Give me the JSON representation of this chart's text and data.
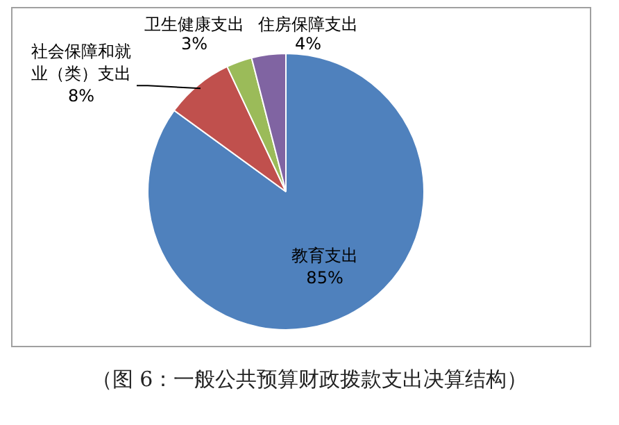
{
  "chart_data": {
    "type": "pie",
    "categories": [
      "教育支出",
      "社会保障和就业（类）支出",
      "卫生健康支出",
      "住房保障支出"
    ],
    "values": [
      85,
      8,
      3,
      4
    ],
    "value_labels": [
      "85%",
      "8%",
      "3%",
      "4%"
    ],
    "colors": [
      "#4f81bd",
      "#c0504d",
      "#9bbb59",
      "#8064a2"
    ],
    "legend": false,
    "annotations": [
      "（图 6：一般公共预算财政拨款支出决算结构）"
    ]
  }
}
